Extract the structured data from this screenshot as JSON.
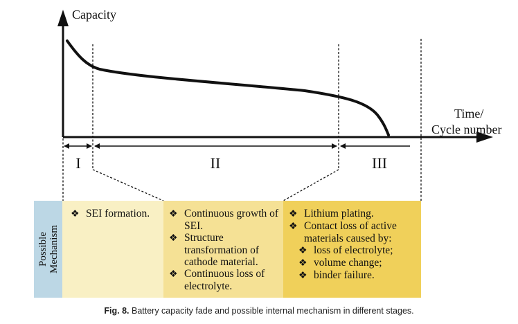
{
  "axes": {
    "y_label": "Capacity",
    "x_label_line1": "Time/",
    "x_label_line2": "Cycle number"
  },
  "stages": [
    {
      "label": "I"
    },
    {
      "label": "II"
    },
    {
      "label": "III"
    }
  ],
  "mechanism_label_line1": "Possible",
  "mechanism_label_line2": "Mechanism",
  "bullet_symbol": "❖",
  "boxes": [
    {
      "color": "#f9f0c4",
      "items": [
        "SEI formation."
      ]
    },
    {
      "color": "#f5e195",
      "items": [
        "Continuous growth of SEI.",
        "Structure transformation of cathode material.",
        "Continuous loss of electrolyte."
      ]
    },
    {
      "color": "#f0d05a",
      "items": [
        "Lithium plating.",
        "Contact loss of active materials caused by:"
      ],
      "subitems": [
        "loss of electrolyte;",
        "volume change;",
        "binder failure."
      ]
    }
  ],
  "caption": {
    "label": "Fig. 8.",
    "text": "Battery capacity fade and possible internal mechanism in different stages."
  }
}
